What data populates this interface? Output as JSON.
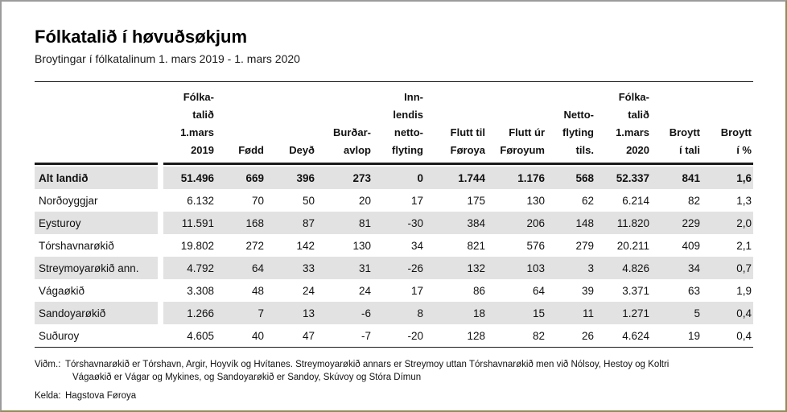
{
  "page": {
    "title": "Fólkatalið í høvuðsøkjum",
    "subtitle": "Broytingar í fólkatalinum 1. mars 2019 - 1. mars 2020"
  },
  "table": {
    "columns": [
      "Fólka-\ntalið\n1.mars\n2019",
      "Fødd",
      "Deyð",
      "Burðar-\navlop",
      "Inn-\nlendis\nnetto-\nflyting",
      "Flutt til\nFøroya",
      "Flutt úr\nFøroyum",
      "Netto-\nflyting\ntils.",
      "Fólka-\ntalið\n1.mars\n2020",
      "Broytt\ní tali",
      "Broytt\ní %"
    ],
    "rows": [
      {
        "label": "Alt landið",
        "values": [
          "51.496",
          "669",
          "396",
          "273",
          "0",
          "1.744",
          "1.176",
          "568",
          "52.337",
          "841",
          "1,6"
        ],
        "total": true,
        "shaded": true
      },
      {
        "label": "Norðoyggjar",
        "values": [
          "6.132",
          "70",
          "50",
          "20",
          "17",
          "175",
          "130",
          "62",
          "6.214",
          "82",
          "1,3"
        ],
        "total": false,
        "shaded": false
      },
      {
        "label": "Eysturoy",
        "values": [
          "11.591",
          "168",
          "87",
          "81",
          "-30",
          "384",
          "206",
          "148",
          "11.820",
          "229",
          "2,0"
        ],
        "total": false,
        "shaded": true
      },
      {
        "label": "Tórshavnarøkið",
        "values": [
          "19.802",
          "272",
          "142",
          "130",
          "34",
          "821",
          "576",
          "279",
          "20.211",
          "409",
          "2,1"
        ],
        "total": false,
        "shaded": false
      },
      {
        "label": "Streymoyarøkið ann.",
        "values": [
          "4.792",
          "64",
          "33",
          "31",
          "-26",
          "132",
          "103",
          "3",
          "4.826",
          "34",
          "0,7"
        ],
        "total": false,
        "shaded": true
      },
      {
        "label": "Vágaøkið",
        "values": [
          "3.308",
          "48",
          "24",
          "24",
          "17",
          "86",
          "64",
          "39",
          "3.371",
          "63",
          "1,9"
        ],
        "total": false,
        "shaded": false
      },
      {
        "label": "Sandoyarøkið",
        "values": [
          "1.266",
          "7",
          "13",
          "-6",
          "8",
          "18",
          "15",
          "11",
          "1.271",
          "5",
          "0,4"
        ],
        "total": false,
        "shaded": true
      },
      {
        "label": "Suðuroy",
        "values": [
          "4.605",
          "40",
          "47",
          "-7",
          "-20",
          "128",
          "82",
          "26",
          "4.624",
          "19",
          "0,4"
        ],
        "total": false,
        "shaded": false
      }
    ]
  },
  "notes": {
    "remark_label": "Viðm.:",
    "remark_line1": "Tórshavnarøkið er Tórshavn, Argir, Hoyvík og Hvítanes. Streymoyarøkið annars er Streymoy uttan Tórshavnarøkið men við Nólsoy, Hestoy og Koltri",
    "remark_line2": "Vágaøkið er Vágar og Mykines, og Sandoyarøkið er Sandoy, Skúvoy og Stóra Dímun",
    "source_label": "Kelda:",
    "source_text": "Hagstova Føroya"
  },
  "colors": {
    "row_stripe": "#e2e2e2",
    "rule": "#1a1a1a",
    "frame_top_left": "#9c9c9c",
    "frame_bottom_right": "#8f8d58"
  }
}
